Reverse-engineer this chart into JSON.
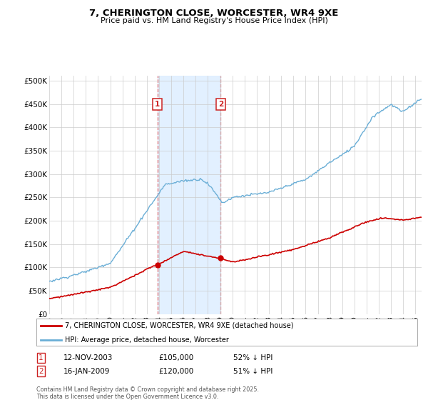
{
  "title": "7, CHERINGTON CLOSE, WORCESTER, WR4 9XE",
  "subtitle": "Price paid vs. HM Land Registry's House Price Index (HPI)",
  "legend_line1": "7, CHERINGTON CLOSE, WORCESTER, WR4 9XE (detached house)",
  "legend_line2": "HPI: Average price, detached house, Worcester",
  "footer": "Contains HM Land Registry data © Crown copyright and database right 2025.\nThis data is licensed under the Open Government Licence v3.0.",
  "annotation1_label": "1",
  "annotation1_date": "12-NOV-2003",
  "annotation1_price": "£105,000",
  "annotation1_hpi": "52% ↓ HPI",
  "annotation2_label": "2",
  "annotation2_date": "16-JAN-2009",
  "annotation2_price": "£120,000",
  "annotation2_hpi": "51% ↓ HPI",
  "hpi_color": "#6aaed6",
  "price_color": "#cc0000",
  "marker_color": "#cc0000",
  "annotation_box_color": "#cc2222",
  "shaded_color": "#ddeeff",
  "ylim": [
    0,
    510000
  ],
  "yticks": [
    0,
    50000,
    100000,
    150000,
    200000,
    250000,
    300000,
    350000,
    400000,
    450000,
    500000
  ],
  "ytick_labels": [
    "£0",
    "£50K",
    "£100K",
    "£150K",
    "£200K",
    "£250K",
    "£300K",
    "£350K",
    "£400K",
    "£450K",
    "£500K"
  ],
  "sale1_x": 2003.87,
  "sale1_y": 105000,
  "sale2_x": 2009.04,
  "sale2_y": 120000,
  "shade_x1": 2003.87,
  "shade_x2": 2009.04,
  "xlim_start": 1995,
  "xlim_end": 2025.5
}
